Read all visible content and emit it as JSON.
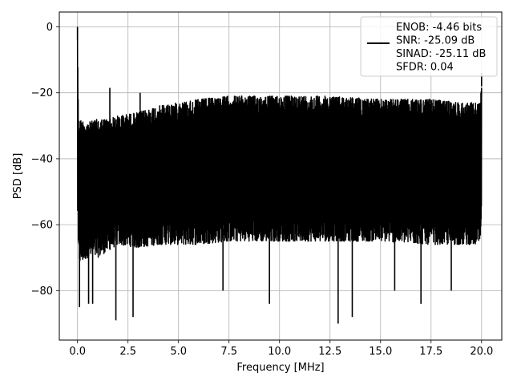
{
  "chart_data": {
    "type": "line",
    "title": "",
    "xlabel": "Frequency [MHz]",
    "ylabel": "PSD [dB]",
    "xlim": [
      -0.9,
      21.0
    ],
    "ylim": [
      -95,
      4.5
    ],
    "x_ticks": [
      0.0,
      2.5,
      5.0,
      7.5,
      10.0,
      12.5,
      15.0,
      17.5,
      20.0
    ],
    "x_tick_labels": [
      "0.0",
      "2.5",
      "5.0",
      "7.5",
      "10.0",
      "12.5",
      "15.0",
      "17.5",
      "20.0"
    ],
    "y_ticks": [
      0,
      -20,
      -40,
      -60,
      -80
    ],
    "y_tick_labels": [
      "0",
      "−20",
      "−40",
      "−60",
      "−80"
    ],
    "grid": true,
    "legend_position": "top-right",
    "series": [
      {
        "name": "ENOB: -4.46 bits\nSNR: -25.09 dB\nSINAD: -25.11 dB\nSFDR: 0.04",
        "color": "#000000",
        "envelope": {
          "x": [
            0.0,
            0.05,
            0.5,
            1.0,
            1.5,
            2.0,
            3.0,
            4.0,
            5.0,
            6.0,
            7.5,
            10.0,
            12.5,
            15.0,
            17.5,
            19.0,
            19.95,
            20.0
          ],
          "upper": [
            0.0,
            -28,
            -29,
            -28,
            -28,
            -27,
            -26,
            -24,
            -23,
            -22,
            -21,
            -21,
            -21,
            -22,
            -22,
            -23,
            -23,
            -14
          ],
          "lower": [
            -54,
            -72,
            -70,
            -70,
            -68,
            -66,
            -67,
            -66,
            -66,
            -66,
            -65,
            -65,
            -65,
            -65,
            -66,
            -66,
            -66,
            -60
          ]
        },
        "peaks": [
          {
            "x": 0.0,
            "y": 0.0
          },
          {
            "x": 1.6,
            "y": -18.5
          },
          {
            "x": 3.1,
            "y": -20.0
          },
          {
            "x": 20.0,
            "y": -14.0
          }
        ],
        "dips": [
          {
            "x": 0.1,
            "y": -85
          },
          {
            "x": 0.55,
            "y": -84
          },
          {
            "x": 0.75,
            "y": -84
          },
          {
            "x": 1.9,
            "y": -89
          },
          {
            "x": 2.75,
            "y": -88
          },
          {
            "x": 7.2,
            "y": -80
          },
          {
            "x": 9.5,
            "y": -84
          },
          {
            "x": 12.9,
            "y": -90
          },
          {
            "x": 13.6,
            "y": -88
          },
          {
            "x": 15.7,
            "y": -80
          },
          {
            "x": 17.0,
            "y": -84
          },
          {
            "x": 18.5,
            "y": -80
          }
        ]
      }
    ]
  }
}
